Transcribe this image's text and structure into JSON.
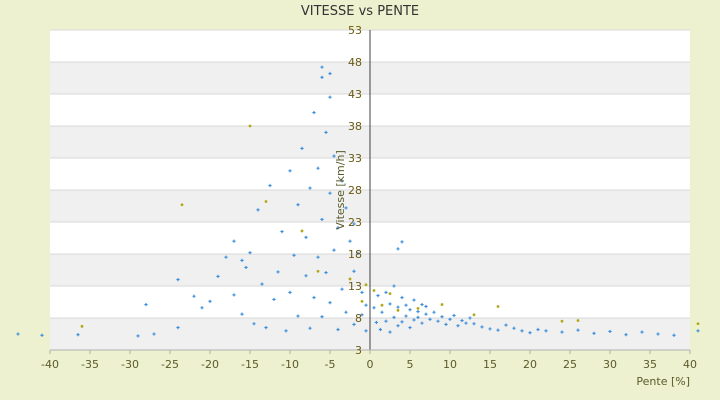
{
  "chart_data": {
    "type": "scatter",
    "title": "VITESSE vs PENTE",
    "xlabel": "Pente [%]",
    "ylabel": "Vitesse [km/h]",
    "xlim": [
      -40,
      40
    ],
    "ylim": [
      3,
      53
    ],
    "x_ticks": [
      -40,
      -35,
      -30,
      -25,
      -20,
      -15,
      -10,
      -5,
      0,
      5,
      10,
      15,
      20,
      25,
      30,
      35,
      40
    ],
    "y_ticks": [
      3,
      8,
      13,
      18,
      23,
      28,
      33,
      38,
      43,
      48,
      53
    ],
    "y_axis_at_x": 0,
    "grid": "horizontal bands",
    "legend": "none",
    "series": [
      {
        "color": "#3a8ddb",
        "marker": "plus",
        "points": [
          [
            -44,
            5.5
          ],
          [
            -41,
            5.3
          ],
          [
            -36.5,
            5.4
          ],
          [
            -29,
            5.2
          ],
          [
            -27,
            5.5
          ],
          [
            -28,
            10.1
          ],
          [
            -24,
            6.5
          ],
          [
            -24,
            14.0
          ],
          [
            -22,
            11.4
          ],
          [
            -21,
            9.6
          ],
          [
            -20,
            10.6
          ],
          [
            -19,
            14.5
          ],
          [
            -18,
            17.5
          ],
          [
            -17,
            20.0
          ],
          [
            -17,
            11.6
          ],
          [
            -16,
            17.0
          ],
          [
            -16,
            8.6
          ],
          [
            -15.5,
            15.9
          ],
          [
            -15,
            18.2
          ],
          [
            -14.5,
            7.1
          ],
          [
            -14,
            24.9
          ],
          [
            -13.5,
            13.3
          ],
          [
            -13,
            6.5
          ],
          [
            -12.5,
            28.7
          ],
          [
            -12,
            10.9
          ],
          [
            -11.5,
            15.2
          ],
          [
            -11,
            21.5
          ],
          [
            -10.5,
            6.0
          ],
          [
            -10,
            31.0
          ],
          [
            -10,
            12.0
          ],
          [
            -9.5,
            17.8
          ],
          [
            -9,
            25.7
          ],
          [
            -9,
            8.3
          ],
          [
            -8.5,
            34.5
          ],
          [
            -8,
            14.6
          ],
          [
            -8,
            20.6
          ],
          [
            -7.5,
            6.4
          ],
          [
            -7.5,
            28.3
          ],
          [
            -7,
            40.1
          ],
          [
            -7,
            11.2
          ],
          [
            -6.5,
            17.5
          ],
          [
            -6.5,
            31.4
          ],
          [
            -6,
            45.6
          ],
          [
            -6,
            23.4
          ],
          [
            -6,
            8.2
          ],
          [
            -5.5,
            37.0
          ],
          [
            -5.5,
            15.1
          ],
          [
            -5,
            42.5
          ],
          [
            -5,
            27.5
          ],
          [
            -5,
            10.4
          ],
          [
            -4.5,
            33.3
          ],
          [
            -4.5,
            18.6
          ],
          [
            -4,
            6.2
          ],
          [
            -4,
            22.1
          ],
          [
            -3.5,
            29.4
          ],
          [
            -3.5,
            12.5
          ],
          [
            -3,
            25.2
          ],
          [
            -3,
            8.9
          ],
          [
            -2.5,
            20.0
          ],
          [
            -2,
            15.3
          ],
          [
            -2,
            7.0
          ],
          [
            -1.5,
            18.1
          ],
          [
            -1,
            12.0
          ],
          [
            -1,
            8.5
          ],
          [
            -0.5,
            6.0
          ],
          [
            -0.5,
            10.0
          ],
          [
            0.5,
            9.6
          ],
          [
            0.8,
            7.3
          ],
          [
            1,
            11.5
          ],
          [
            1.3,
            6.2
          ],
          [
            1.5,
            8.9
          ],
          [
            2,
            12.0
          ],
          [
            2,
            7.5
          ],
          [
            2.5,
            10.2
          ],
          [
            2.5,
            5.8
          ],
          [
            3,
            13.0
          ],
          [
            3,
            8.1
          ],
          [
            3.5,
            9.7
          ],
          [
            3.5,
            6.8
          ],
          [
            4,
            11.2
          ],
          [
            4,
            7.4
          ],
          [
            4.5,
            10.0
          ],
          [
            4.5,
            8.3
          ],
          [
            5,
            9.3
          ],
          [
            5,
            6.5
          ],
          [
            5.5,
            10.8
          ],
          [
            5.5,
            7.7
          ],
          [
            6,
            9.0
          ],
          [
            6,
            8.1
          ],
          [
            6.5,
            10.1
          ],
          [
            6.5,
            7.2
          ],
          [
            7,
            8.6
          ],
          [
            7,
            9.8
          ],
          [
            7.5,
            7.8
          ],
          [
            8,
            8.9
          ],
          [
            8.5,
            7.5
          ],
          [
            9,
            8.2
          ],
          [
            9.5,
            7.0
          ],
          [
            10,
            7.8
          ],
          [
            10.5,
            8.4
          ],
          [
            11,
            6.8
          ],
          [
            11.5,
            7.6
          ],
          [
            12,
            7.2
          ],
          [
            12.5,
            8.0
          ],
          [
            13,
            7.1
          ],
          [
            14,
            6.6
          ],
          [
            15,
            6.3
          ],
          [
            16,
            6.1
          ],
          [
            17,
            6.9
          ],
          [
            18,
            6.4
          ],
          [
            19,
            6.0
          ],
          [
            20,
            5.7
          ],
          [
            21,
            6.2
          ],
          [
            22,
            6.0
          ],
          [
            24,
            5.8
          ],
          [
            26,
            6.1
          ],
          [
            28,
            5.6
          ],
          [
            30,
            5.9
          ],
          [
            32,
            5.4
          ],
          [
            34,
            5.8
          ],
          [
            36,
            5.5
          ],
          [
            38,
            5.3
          ],
          [
            41,
            6.0
          ],
          [
            -2,
            22.7
          ],
          [
            4,
            19.9
          ],
          [
            3.5,
            18.8
          ],
          [
            -6,
            47.2
          ],
          [
            -5,
            46.2
          ]
        ]
      },
      {
        "color": "#b2a817",
        "marker": "dot",
        "points": [
          [
            -36,
            6.7
          ],
          [
            -15,
            38.0
          ],
          [
            -23.5,
            25.7
          ],
          [
            -8.5,
            21.6
          ],
          [
            -13,
            26.2
          ],
          [
            -6.5,
            15.3
          ],
          [
            -2.5,
            14.1
          ],
          [
            -1,
            10.6
          ],
          [
            0.5,
            12.3
          ],
          [
            1.5,
            10.0
          ],
          [
            2.5,
            11.8
          ],
          [
            3.5,
            9.2
          ],
          [
            6,
            9.5
          ],
          [
            9,
            10.1
          ],
          [
            13,
            8.5
          ],
          [
            16,
            9.8
          ],
          [
            24,
            7.5
          ],
          [
            26,
            7.6
          ],
          [
            41,
            7.1
          ],
          [
            -0.5,
            13.2
          ]
        ]
      }
    ]
  }
}
